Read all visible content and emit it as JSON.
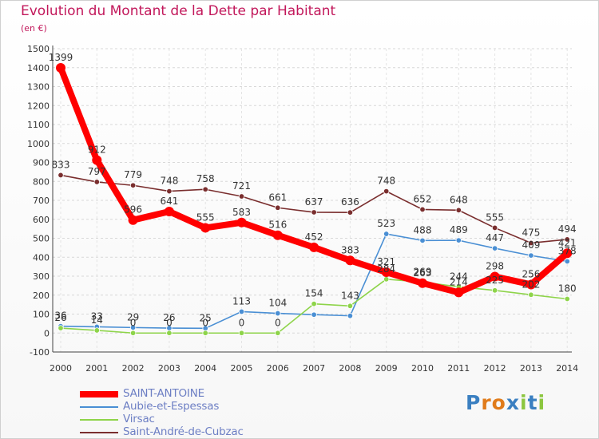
{
  "chart_data": {
    "type": "line",
    "title": "Evolution du Montant de la Dette par Habitant",
    "unit_label": "(en €)",
    "x": [
      "2000",
      "2001",
      "2002",
      "2003",
      "2004",
      "2005",
      "2006",
      "2007",
      "2008",
      "2009",
      "2010",
      "2011",
      "2012",
      "2013",
      "2014"
    ],
    "ylim": [
      -100,
      1500
    ],
    "yticks": [
      -100,
      0,
      100,
      200,
      300,
      400,
      500,
      600,
      700,
      800,
      900,
      1000,
      1100,
      1200,
      1300,
      1400,
      1500
    ],
    "grid": true,
    "legend_position": "bottom-left",
    "series": [
      {
        "name": "SAINT-ANTOINE",
        "color": "#ff0000",
        "values": [
          1399,
          912,
          596,
          641,
          555,
          583,
          516,
          452,
          383,
          321,
          263,
          214,
          298,
          256,
          421
        ],
        "labels": [
          "1399",
          "912",
          "596",
          "641",
          "555",
          "583",
          "516",
          "452",
          "383",
          "321",
          "263",
          "214",
          "298",
          "256",
          "421"
        ]
      },
      {
        "name": "Aubie-et-Espessas",
        "color": "#4a8fd4",
        "values": [
          36,
          33,
          29,
          26,
          25,
          113,
          104,
          97,
          91,
          523,
          488,
          489,
          447,
          409,
          378
        ],
        "labels": [
          "36",
          "33",
          "29",
          "26",
          "25",
          "113",
          "104",
          "",
          "",
          "523",
          "488",
          "489",
          "447",
          "409",
          "378"
        ]
      },
      {
        "name": "Virsac",
        "color": "#8ed44a",
        "values": [
          26,
          14,
          0,
          0,
          0,
          0,
          0,
          154,
          143,
          284,
          269,
          244,
          225,
          202,
          180
        ],
        "labels": [
          "26",
          "14",
          "0",
          "0",
          "0",
          "0",
          "0",
          "154",
          "143",
          "284",
          "269",
          "244",
          "225",
          "202",
          "180"
        ]
      },
      {
        "name": "Saint-André-de-Cubzac",
        "color": "#7a2e2e",
        "values": [
          833,
          797,
          779,
          748,
          758,
          721,
          661,
          637,
          636,
          748,
          652,
          648,
          555,
          475,
          494
        ],
        "labels": [
          "833",
          "797",
          "779",
          "748",
          "758",
          "721",
          "661",
          "637",
          "636",
          "748",
          "652",
          "648",
          "555",
          "475",
          "494"
        ]
      }
    ]
  },
  "logo": {
    "text": "Proxiti",
    "letters": [
      "P",
      "r",
      "o",
      "x",
      "i",
      "t",
      "i"
    ]
  }
}
